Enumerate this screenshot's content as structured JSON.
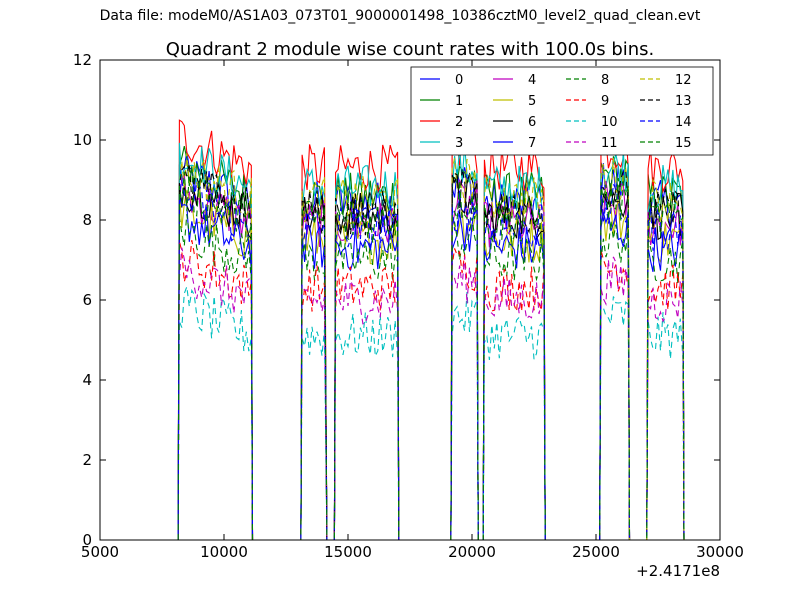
{
  "header": {
    "suptitle": "Data file: modeM0/AS1A03_073T01_9000001498_10386cztM0_level2_quad_clean.evt"
  },
  "chart_data": {
    "type": "line",
    "title": "Quadrant 2 module wise count rates with 100.0s bins.",
    "xlabel": "",
    "ylabel": "",
    "xlim": [
      5000,
      30000
    ],
    "ylim": [
      0,
      12
    ],
    "xticks": [
      "5000",
      "10000",
      "15000",
      "20000",
      "25000",
      "30000"
    ],
    "yticks": [
      "0",
      "2",
      "4",
      "6",
      "8",
      "10",
      "12"
    ],
    "offset_text": "+2.4171e8",
    "legend_position": "upper-right",
    "segments": [
      [
        8200,
        11100
      ],
      [
        13150,
        14100
      ],
      [
        14500,
        17000
      ],
      [
        19200,
        20200
      ],
      [
        20500,
        22900
      ],
      [
        25200,
        26300
      ],
      [
        27100,
        28500
      ]
    ],
    "gap_level": 0,
    "series": [
      {
        "name": "0",
        "color": "#0000ff",
        "dashed": false,
        "level": 8.4
      },
      {
        "name": "1",
        "color": "#008000",
        "dashed": false,
        "level": 8.6
      },
      {
        "name": "2",
        "color": "#ff0000",
        "dashed": false,
        "level": 9.3
      },
      {
        "name": "3",
        "color": "#00bfbf",
        "dashed": false,
        "level": 8.8
      },
      {
        "name": "4",
        "color": "#bf00bf",
        "dashed": false,
        "level": 7.9
      },
      {
        "name": "5",
        "color": "#bfbf00",
        "dashed": false,
        "level": 7.5
      },
      {
        "name": "6",
        "color": "#000000",
        "dashed": false,
        "level": 8.1
      },
      {
        "name": "7",
        "color": "#0000ff",
        "dashed": false,
        "level": 7.3
      },
      {
        "name": "8",
        "color": "#008000",
        "dashed": true,
        "level": 7.0
      },
      {
        "name": "9",
        "color": "#ff0000",
        "dashed": true,
        "level": 6.3
      },
      {
        "name": "10",
        "color": "#00bfbf",
        "dashed": true,
        "level": 5.1
      },
      {
        "name": "11",
        "color": "#bf00bf",
        "dashed": true,
        "level": 6.0
      },
      {
        "name": "12",
        "color": "#bfbf00",
        "dashed": true,
        "level": 8.5
      },
      {
        "name": "13",
        "color": "#000000",
        "dashed": true,
        "level": 8.2
      },
      {
        "name": "14",
        "color": "#0000ff",
        "dashed": true,
        "level": 7.8
      },
      {
        "name": "15",
        "color": "#008000",
        "dashed": true,
        "level": 8.0
      }
    ]
  }
}
